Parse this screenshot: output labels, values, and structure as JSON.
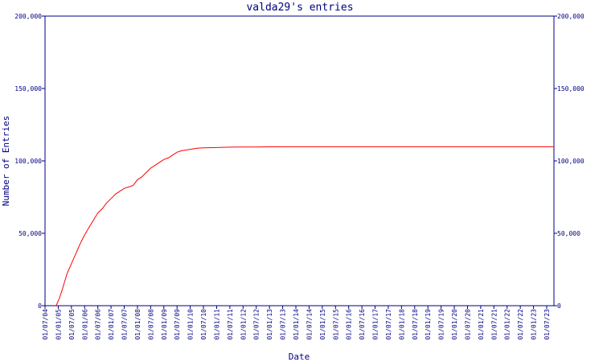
{
  "chart_data": {
    "type": "line",
    "title": "valda29's entries",
    "xlabel": "Date",
    "ylabel": "Number of Entries",
    "ylim": [
      0,
      200000
    ],
    "y_ticks": [
      0,
      50000,
      100000,
      150000,
      200000
    ],
    "y_tick_labels": [
      "0",
      "50,000",
      "100,000",
      "150,000",
      "200,000"
    ],
    "x_tick_labels": [
      "01/07/04",
      "01/01/05",
      "01/07/05",
      "01/01/06",
      "01/07/06",
      "01/01/07",
      "01/07/07",
      "01/01/08",
      "01/07/08",
      "01/01/09",
      "01/07/09",
      "01/01/10",
      "01/07/10",
      "01/01/11",
      "01/07/11",
      "01/01/12",
      "01/07/12",
      "01/01/13",
      "01/07/13",
      "01/01/14",
      "01/07/14",
      "01/01/15",
      "01/07/15",
      "01/01/16",
      "01/07/16",
      "01/01/17",
      "01/07/17",
      "01/01/18",
      "01/07/18",
      "01/01/19",
      "01/07/19",
      "01/01/20",
      "01/07/20",
      "01/01/21",
      "01/07/21",
      "01/01/22",
      "01/07/22",
      "01/01/23",
      "01/07/23"
    ],
    "grid": false,
    "series": [
      {
        "color": "#ff0000",
        "points": [
          [
            "2004-12-01",
            0
          ],
          [
            "2005-01-15",
            5000
          ],
          [
            "2005-03-01",
            12000
          ],
          [
            "2005-05-01",
            22000
          ],
          [
            "2005-07-01",
            29000
          ],
          [
            "2005-09-01",
            36000
          ],
          [
            "2005-11-01",
            43000
          ],
          [
            "2006-01-01",
            49000
          ],
          [
            "2006-03-01",
            54000
          ],
          [
            "2006-05-01",
            59000
          ],
          [
            "2006-07-01",
            64000
          ],
          [
            "2006-09-01",
            67000
          ],
          [
            "2006-11-01",
            71000
          ],
          [
            "2007-01-01",
            74000
          ],
          [
            "2007-03-01",
            77000
          ],
          [
            "2007-05-01",
            79000
          ],
          [
            "2007-07-01",
            81000
          ],
          [
            "2007-09-01",
            82000
          ],
          [
            "2007-11-01",
            83000
          ],
          [
            "2008-01-01",
            87000
          ],
          [
            "2008-03-01",
            89000
          ],
          [
            "2008-05-01",
            92000
          ],
          [
            "2008-07-01",
            95000
          ],
          [
            "2008-09-01",
            97000
          ],
          [
            "2008-11-01",
            99000
          ],
          [
            "2009-01-01",
            101000
          ],
          [
            "2009-03-01",
            102000
          ],
          [
            "2009-05-01",
            104000
          ],
          [
            "2009-07-01",
            106000
          ],
          [
            "2009-09-01",
            107000
          ],
          [
            "2009-11-01",
            107500
          ],
          [
            "2010-01-01",
            108000
          ],
          [
            "2010-04-01",
            108800
          ],
          [
            "2010-07-01",
            109000
          ],
          [
            "2011-01-01",
            109200
          ],
          [
            "2011-07-01",
            109500
          ],
          [
            "2012-01-01",
            109600
          ],
          [
            "2012-07-01",
            109600
          ],
          [
            "2013-01-01",
            109700
          ],
          [
            "2013-07-01",
            109800
          ],
          [
            "2014-01-01",
            109800
          ],
          [
            "2015-01-01",
            109800
          ],
          [
            "2016-01-01",
            109800
          ],
          [
            "2017-01-01",
            109800
          ],
          [
            "2018-01-01",
            109800
          ],
          [
            "2019-01-01",
            109800
          ],
          [
            "2020-01-01",
            109800
          ],
          [
            "2021-01-01",
            109800
          ],
          [
            "2022-01-01",
            109800
          ],
          [
            "2023-01-01",
            109800
          ],
          [
            "2023-10-01",
            109800
          ]
        ]
      }
    ]
  }
}
